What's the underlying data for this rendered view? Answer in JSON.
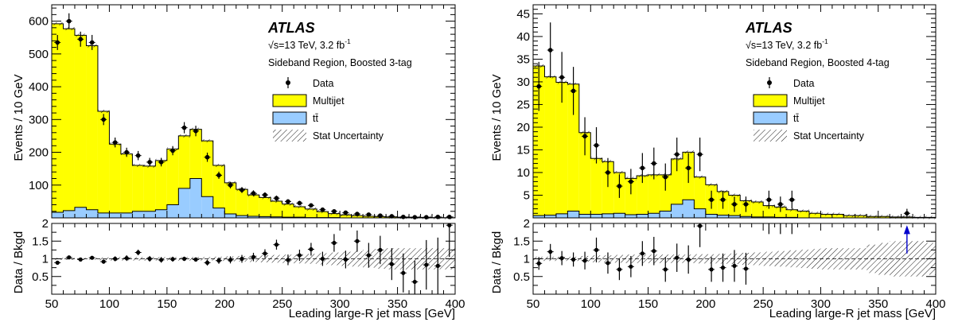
{
  "chart_data": [
    {
      "type": "bar",
      "atlas_label": "ATLAS",
      "energy_label": "√s=13 TeV, 3.2 fb",
      "energy_sup": "-1",
      "region_label": "Sideband Region, Boosted 3-tag",
      "ylabel": "Events / 10 GeV",
      "ratio_ylabel": "Data / Bkgd",
      "xlabel": "Leading large-R jet mass [GeV]",
      "xlim": [
        50,
        400
      ],
      "ylim": [
        0,
        650
      ],
      "ratio_ylim": [
        0,
        2
      ],
      "x_ticks": [
        "50",
        "100",
        "150",
        "200",
        "250",
        "300",
        "350",
        "400"
      ],
      "y_ticks": [
        "100",
        "200",
        "300",
        "400",
        "500",
        "600"
      ],
      "ratio_ticks": [
        "0.5",
        "1",
        "1.5",
        "2"
      ],
      "legend": [
        "Data",
        "Multijet",
        "tt̄",
        "Stat Uncertainty"
      ],
      "bin_edges": [
        50,
        60,
        70,
        80,
        90,
        100,
        110,
        120,
        130,
        140,
        150,
        160,
        170,
        180,
        190,
        200,
        210,
        220,
        230,
        240,
        250,
        260,
        270,
        280,
        290,
        300,
        310,
        320,
        330,
        340,
        350,
        360,
        370,
        380,
        390,
        400
      ],
      "multijet": [
        575,
        555,
        525,
        500,
        310,
        210,
        180,
        140,
        138,
        150,
        170,
        160,
        150,
        170,
        130,
        95,
        80,
        65,
        58,
        48,
        40,
        32,
        26,
        18,
        12,
        9,
        7,
        5,
        4,
        3,
        2,
        2,
        1.5,
        1,
        0.5
      ],
      "ttbar": [
        17,
        22,
        32,
        25,
        15,
        15,
        15,
        20,
        20,
        25,
        40,
        90,
        120,
        65,
        30,
        12,
        7,
        5,
        4,
        3,
        2,
        2,
        1,
        1,
        1,
        0,
        0,
        0,
        0,
        0,
        0,
        0,
        0,
        0,
        0
      ],
      "data": {
        "x": [
          55,
          65,
          75,
          85,
          95,
          105,
          115,
          125,
          135,
          145,
          155,
          165,
          175,
          185,
          195,
          205,
          215,
          225,
          235,
          245,
          255,
          265,
          275,
          285,
          295,
          305,
          315,
          325,
          335,
          345,
          355,
          365,
          375,
          385,
          395
        ],
        "y": [
          535,
          600,
          545,
          535,
          300,
          230,
          200,
          190,
          170,
          170,
          205,
          275,
          265,
          185,
          130,
          100,
          85,
          75,
          70,
          60,
          50,
          45,
          38,
          25,
          20,
          16,
          12,
          10,
          7,
          5,
          3,
          2,
          2,
          3,
          3
        ],
        "err": [
          23,
          24,
          23,
          23,
          17,
          15,
          14,
          14,
          13,
          13,
          14,
          17,
          16,
          14,
          11,
          10,
          9,
          9,
          8,
          8,
          7,
          7,
          6,
          5,
          4.5,
          4,
          3.5,
          3.2,
          2.6,
          2.2,
          1.7,
          1.4,
          1.4,
          1.7,
          1.7
        ]
      },
      "ratio": {
        "x": [
          55,
          65,
          75,
          85,
          95,
          105,
          115,
          125,
          135,
          145,
          155,
          165,
          175,
          185,
          195,
          205,
          215,
          225,
          235,
          245,
          255,
          265,
          275,
          285,
          295,
          305,
          315,
          325,
          335,
          345,
          355,
          365,
          375,
          385,
          395
        ],
        "y": [
          0.89,
          1.04,
          0.98,
          1.03,
          0.92,
          1.0,
          1.02,
          1.18,
          1.0,
          0.97,
          0.99,
          1.0,
          0.98,
          0.89,
          0.95,
          0.97,
          1.0,
          1.05,
          1.15,
          1.4,
          0.97,
          1.1,
          1.27,
          1.0,
          1.45,
          0.98,
          1.5,
          1.1,
          1.25,
          0.85,
          0.6,
          0.35,
          0.83,
          0.8,
          1.95
        ],
        "err": [
          0.04,
          0.04,
          0.04,
          0.04,
          0.06,
          0.07,
          0.08,
          0.08,
          0.08,
          0.08,
          0.07,
          0.06,
          0.06,
          0.08,
          0.09,
          0.1,
          0.11,
          0.12,
          0.12,
          0.14,
          0.15,
          0.16,
          0.18,
          0.2,
          0.25,
          0.25,
          0.3,
          0.35,
          0.4,
          0.45,
          0.55,
          0.6,
          0.7,
          0.8,
          0.9
        ]
      },
      "ratio_band": [
        0.03,
        0.03,
        0.03,
        0.03,
        0.04,
        0.05,
        0.05,
        0.05,
        0.05,
        0.05,
        0.05,
        0.05,
        0.05,
        0.05,
        0.06,
        0.07,
        0.08,
        0.09,
        0.1,
        0.11,
        0.12,
        0.13,
        0.14,
        0.16,
        0.18,
        0.2,
        0.22,
        0.25,
        0.28,
        0.3,
        0.3,
        0.3,
        0.3,
        0.3,
        0.3
      ]
    },
    {
      "type": "bar",
      "atlas_label": "ATLAS",
      "energy_label": "√s=13 TeV, 3.2 fb",
      "energy_sup": "-1",
      "region_label": "Sideband Region, Boosted 4-tag",
      "ylabel": "Events / 10 GeV",
      "ratio_ylabel": "Data / Bkgd",
      "xlabel": "Leading large-R jet mass [GeV]",
      "xlim": [
        50,
        400
      ],
      "ylim": [
        0,
        47
      ],
      "ratio_ylim": [
        0,
        2
      ],
      "x_ticks": [
        "50",
        "100",
        "150",
        "200",
        "250",
        "300",
        "350",
        "400"
      ],
      "y_ticks": [
        "5",
        "10",
        "15",
        "20",
        "25",
        "30",
        "35",
        "40",
        "45"
      ],
      "ratio_ticks": [
        "0.5",
        "1",
        "1.5",
        "2"
      ],
      "legend": [
        "Data",
        "Multijet",
        "tt̄",
        "Stat Uncertainty"
      ],
      "bin_edges": [
        50,
        60,
        70,
        80,
        90,
        100,
        110,
        120,
        130,
        140,
        150,
        160,
        170,
        180,
        190,
        200,
        210,
        220,
        230,
        240,
        250,
        260,
        270,
        280,
        290,
        300,
        310,
        320,
        330,
        340,
        350,
        360,
        370,
        380,
        390,
        400
      ],
      "multijet": [
        33,
        30.5,
        29,
        28,
        18,
        12.3,
        11.5,
        9,
        8,
        8.5,
        8.5,
        8,
        10,
        10.5,
        7,
        6.5,
        5.2,
        4.5,
        3.5,
        3.3,
        2.5,
        2.3,
        1.7,
        1.5,
        1,
        0.8,
        0.8,
        0.5,
        0.5,
        0.3,
        0.3,
        0.2,
        0.2,
        0.1,
        0.1
      ],
      "ttbar": [
        0.5,
        0.6,
        0.9,
        1.5,
        0.8,
        0.8,
        0.9,
        1.0,
        0.7,
        0.8,
        1.0,
        1.5,
        3.0,
        4.0,
        2.0,
        0.8,
        0.6,
        0.5,
        0.3,
        0.2,
        0.2,
        0.1,
        0.1,
        0,
        0,
        0,
        0,
        0,
        0,
        0,
        0,
        0,
        0,
        0,
        0
      ],
      "data": {
        "x": [
          55,
          65,
          75,
          85,
          95,
          105,
          115,
          125,
          135,
          145,
          155,
          165,
          175,
          185,
          195,
          205,
          215,
          225,
          235,
          255,
          265,
          275,
          375
        ],
        "y": [
          29,
          37,
          31,
          28,
          18,
          16,
          10,
          7,
          8,
          11,
          12,
          9,
          14,
          11,
          14,
          4,
          4,
          3,
          3,
          4,
          3,
          4,
          1
        ],
        "err": [
          5.4,
          6.1,
          5.6,
          5.3,
          4.2,
          4.0,
          3.2,
          2.6,
          2.8,
          3.3,
          3.5,
          3.0,
          3.7,
          3.3,
          3.7,
          2.0,
          2.0,
          1.7,
          1.7,
          2.0,
          1.7,
          2.0,
          1.0
        ]
      },
      "ratio": {
        "x": [
          55,
          65,
          75,
          85,
          95,
          105,
          115,
          125,
          135,
          145,
          155,
          165,
          175,
          185,
          195,
          205,
          215,
          225,
          235,
          255,
          265,
          275
        ],
        "y": [
          0.87,
          1.2,
          1.02,
          0.98,
          0.95,
          1.25,
          0.88,
          0.7,
          0.78,
          1.15,
          1.22,
          0.7,
          1.03,
          0.98,
          1.93,
          0.7,
          0.75,
          0.8,
          0.72,
          2.3,
          2.3,
          2.3
        ],
        "err": [
          0.18,
          0.22,
          0.2,
          0.2,
          0.25,
          0.35,
          0.3,
          0.3,
          0.3,
          0.35,
          0.4,
          0.35,
          0.4,
          0.4,
          0.6,
          0.35,
          0.4,
          0.45,
          0.45,
          0.6,
          0.6,
          0.6
        ]
      },
      "ratio_band": [
        0.06,
        0.06,
        0.06,
        0.06,
        0.08,
        0.1,
        0.1,
        0.11,
        0.12,
        0.12,
        0.12,
        0.12,
        0.12,
        0.12,
        0.13,
        0.13,
        0.14,
        0.15,
        0.17,
        0.18,
        0.2,
        0.22,
        0.24,
        0.26,
        0.28,
        0.3,
        0.3,
        0.3,
        0.3,
        0.4,
        0.45,
        0.5,
        0.5,
        0.5,
        0.45
      ],
      "ratio_arrow_x": 375
    }
  ],
  "colors": {
    "multijet": "#ffff00",
    "ttbar": "#99ccff",
    "data": "#000000",
    "arrow": "#0000cc"
  }
}
